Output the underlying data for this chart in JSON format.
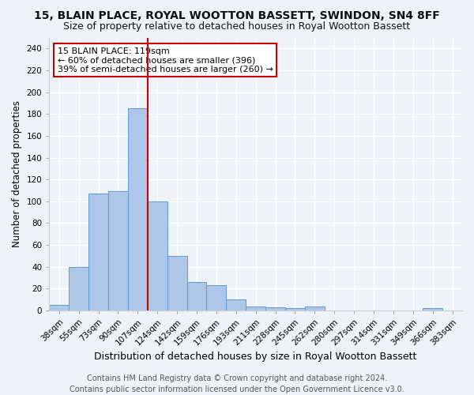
{
  "title": "15, BLAIN PLACE, ROYAL WOOTTON BASSETT, SWINDON, SN4 8FF",
  "subtitle": "Size of property relative to detached houses in Royal Wootton Bassett",
  "xlabel": "Distribution of detached houses by size in Royal Wootton Bassett",
  "ylabel": "Number of detached properties",
  "footer_line1": "Contains HM Land Registry data © Crown copyright and database right 2024.",
  "footer_line2": "Contains public sector information licensed under the Open Government Licence v3.0.",
  "categories": [
    "38sqm",
    "55sqm",
    "73sqm",
    "90sqm",
    "107sqm",
    "124sqm",
    "142sqm",
    "159sqm",
    "176sqm",
    "193sqm",
    "211sqm",
    "228sqm",
    "245sqm",
    "262sqm",
    "280sqm",
    "297sqm",
    "314sqm",
    "331sqm",
    "349sqm",
    "366sqm",
    "383sqm"
  ],
  "values": [
    5,
    40,
    107,
    109,
    185,
    100,
    50,
    26,
    23,
    10,
    4,
    3,
    2,
    4,
    0,
    0,
    0,
    0,
    0,
    2,
    0
  ],
  "bar_color": "#aec6e8",
  "bar_edge_color": "#5b9bd5",
  "vline_color": "#cc0000",
  "vline_index": 4.5,
  "ylim": [
    0,
    250
  ],
  "yticks": [
    0,
    20,
    40,
    60,
    80,
    100,
    120,
    140,
    160,
    180,
    200,
    220,
    240
  ],
  "annotation_text": "15 BLAIN PLACE: 119sqm\n← 60% of detached houses are smaller (396)\n39% of semi-detached houses are larger (260) →",
  "annotation_box_color": "#ffffff",
  "annotation_box_edge_color": "#cc0000",
  "bg_color": "#eef3f9",
  "plot_bg_color": "#eef3f9",
  "grid_color": "#ffffff",
  "title_fontsize": 10,
  "subtitle_fontsize": 9,
  "xlabel_fontsize": 9,
  "ylabel_fontsize": 8.5,
  "tick_fontsize": 7.5,
  "annotation_fontsize": 8,
  "footer_fontsize": 7
}
